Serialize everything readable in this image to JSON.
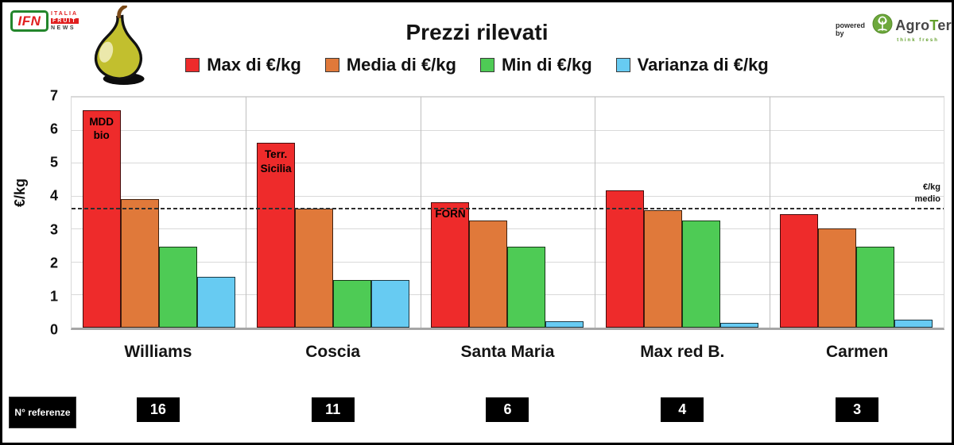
{
  "header": {
    "ifn_logo": {
      "main": "IFN",
      "line1": "ITALIA",
      "line2": "FRUIT",
      "line3": "NEWS"
    },
    "title": "Prezzi rilevati",
    "powered_by": "powered by",
    "agroter": {
      "prefix": "Agro",
      "t": "T",
      "suffix": "er",
      "tagline": "think fresh"
    }
  },
  "chart_data": {
    "type": "bar",
    "title": "Prezzi rilevati",
    "ylabel": "€/kg",
    "ylim": [
      0,
      7
    ],
    "yticks": [
      0,
      1,
      2,
      3,
      4,
      5,
      6,
      7
    ],
    "grid": "horizontal",
    "legend_position": "top",
    "categories": [
      "Williams",
      "Coscia",
      "Santa Maria",
      "Max red B.",
      "Carmen"
    ],
    "series": [
      {
        "name": "Max di €/kg",
        "color": "#ee2b2b",
        "values": [
          6.6,
          5.6,
          3.8,
          4.15,
          3.45
        ]
      },
      {
        "name": "Media di €/kg",
        "color": "#e0793a",
        "values": [
          3.9,
          3.6,
          3.25,
          3.55,
          3.0
        ]
      },
      {
        "name": "Min di €/kg",
        "color": "#4ecb55",
        "values": [
          2.45,
          1.45,
          2.45,
          3.25,
          2.45
        ]
      },
      {
        "name": "Varianza di €/kg",
        "color": "#67cbf2",
        "values": [
          1.55,
          1.45,
          0.2,
          0.15,
          0.25
        ]
      }
    ],
    "bar_annotations": [
      [
        "MDD",
        "bio"
      ],
      [
        "Terr.",
        "Sicilia"
      ],
      [
        "FORN"
      ],
      [],
      []
    ],
    "avg_line": {
      "value": 3.6,
      "label_line1": "€/kg",
      "label_line2": "medio"
    },
    "references": {
      "label": "N° referenze",
      "values": [
        16,
        11,
        6,
        4,
        3
      ]
    }
  }
}
